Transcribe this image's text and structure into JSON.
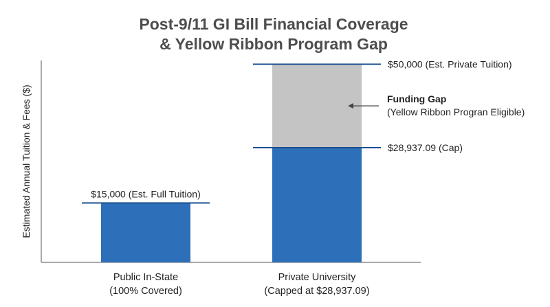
{
  "chart_data": {
    "type": "bar",
    "title_lines": [
      "Post-9/11 GI Bill Financial Coverage",
      "& Yellow Ribbon Program Gap"
    ],
    "ylabel": "Estimated Annual Tuition & Fees ($)",
    "xlabel": "",
    "ylim": [
      0,
      61000
    ],
    "grid": false,
    "categories": [
      [
        "Public In-State",
        "(100% Covered)"
      ],
      [
        "Private University",
        "(Capped at $28,937.09)"
      ]
    ],
    "series": [
      {
        "name": "",
        "values": [
          15000,
          28937.09
        ],
        "color": "#2e6fba"
      },
      {
        "name": "",
        "values": [
          0,
          21062.91
        ],
        "color": "#c4c4c4"
      }
    ],
    "reference_lines": [
      {
        "category": 0,
        "value": 15000,
        "label": "$15,000 (Est. Full Tuition)",
        "label_position": "above"
      },
      {
        "category": 1,
        "value": 50000,
        "label": "$50,000 (Est. Private Tuition)",
        "label_position": "right"
      },
      {
        "category": 1,
        "value": 28937.09,
        "label": "$28,937.09 (Cap)",
        "label_position": "right"
      }
    ],
    "annotation": {
      "category": 1,
      "value": 40000,
      "title": "Funding Gap",
      "subtitle": "(Yellow Ribbon Progran Eligible)"
    },
    "colors": {
      "covered": "#2e6fba",
      "gap": "#c4c4c4",
      "line": "#1b4f8f",
      "text": "#222222",
      "title": "#4d4d4d"
    }
  }
}
